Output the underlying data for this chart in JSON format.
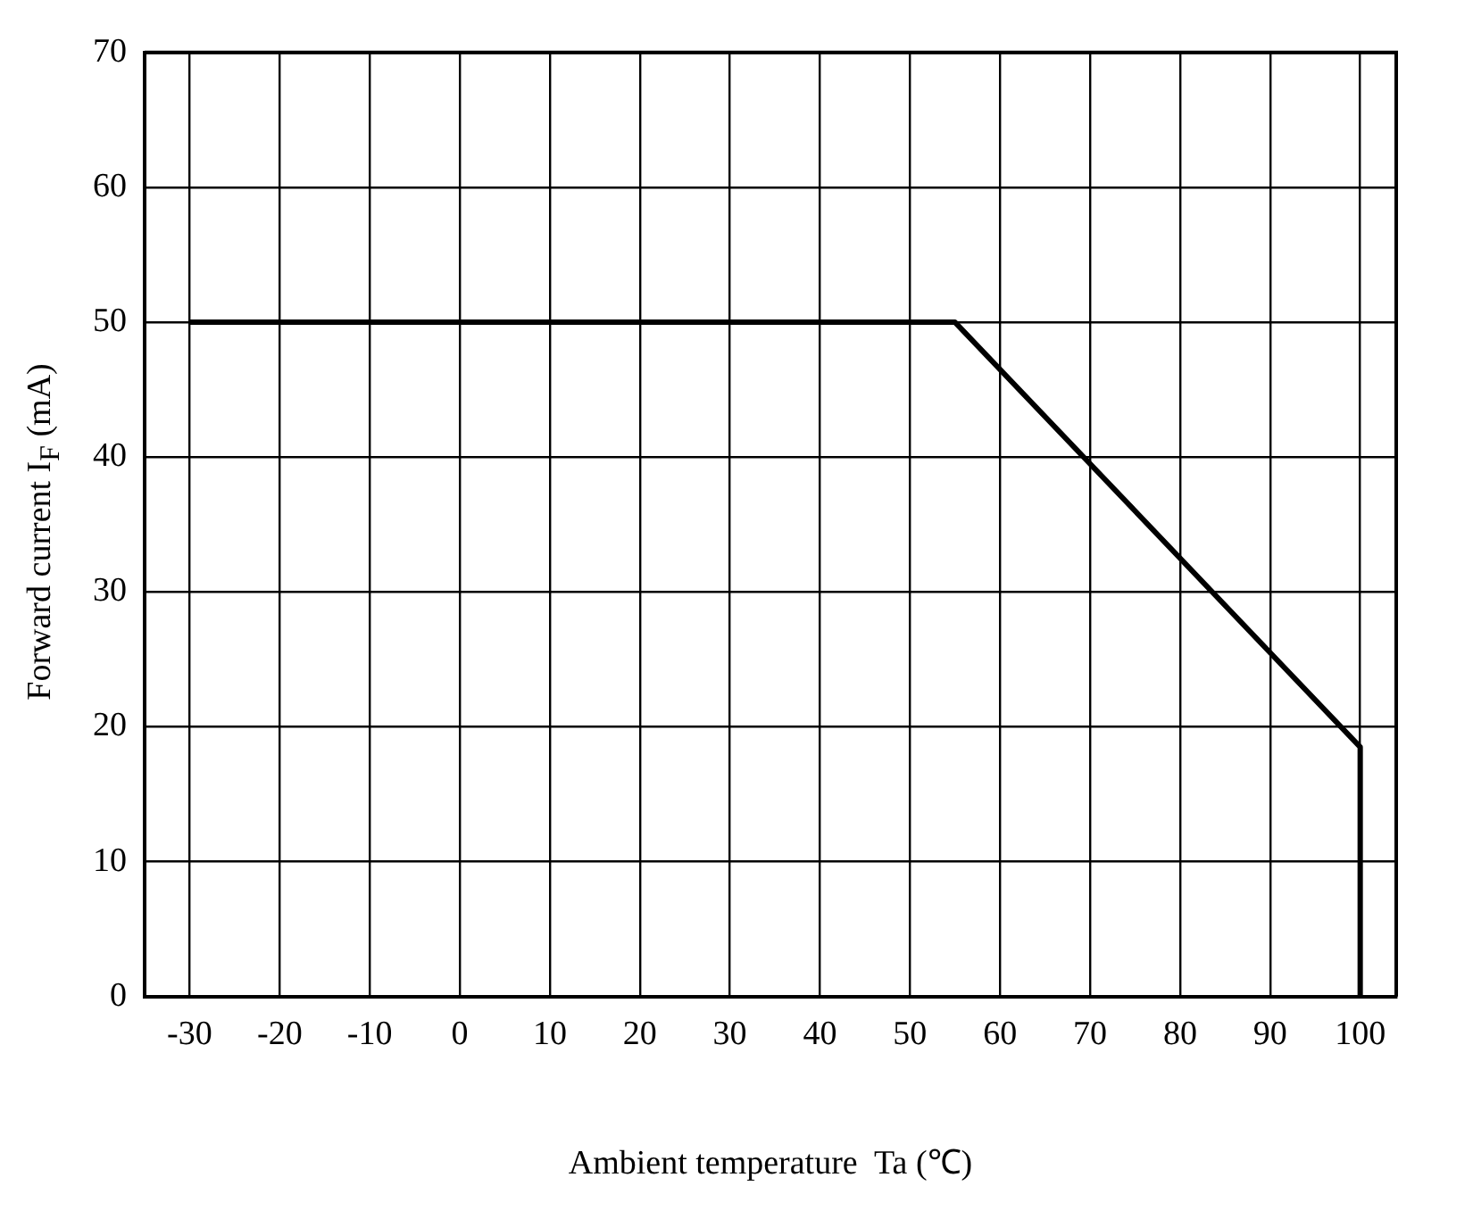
{
  "chart_data": {
    "type": "line",
    "xlabel": "Ambient temperature  Ta (℃)",
    "ylabel": "Forward current I$_{F}$ (mA)",
    "x": [
      -30,
      55,
      100,
      100
    ],
    "series": [
      {
        "color": "#000000",
        "values": [
          50,
          50,
          18.5,
          0
        ]
      }
    ],
    "xlim": [
      -35,
      104
    ],
    "xticks": [
      -30,
      -20,
      -10,
      0,
      10,
      20,
      30,
      40,
      50,
      60,
      70,
      80,
      90,
      100
    ],
    "ylim": [
      0,
      70
    ],
    "yticks": [
      0,
      10,
      20,
      30,
      40,
      50,
      60,
      70
    ],
    "grid": true,
    "legend": false,
    "marker": "none",
    "line_style": "solid"
  }
}
